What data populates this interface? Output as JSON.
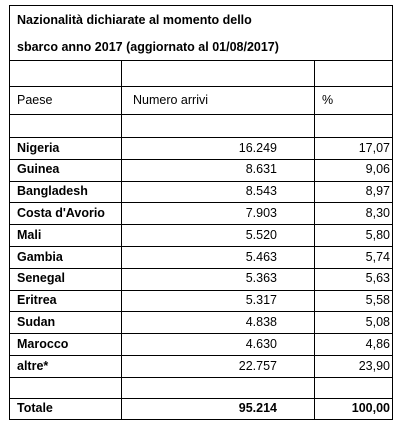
{
  "title_line1": "Nazionalità dichiarate al momento dello",
  "title_line2": "sbarco anno 2017 (aggiornato al 01/08/2017)",
  "headers": {
    "country": "Paese",
    "arrivals": "Numero arrivi",
    "percent": "%"
  },
  "rows": [
    {
      "country": "Nigeria",
      "arrivals": "16.249",
      "percent": "17,07"
    },
    {
      "country": "Guinea",
      "arrivals": "8.631",
      "percent": "9,06"
    },
    {
      "country": "Bangladesh",
      "arrivals": "8.543",
      "percent": "8,97"
    },
    {
      "country": "Costa d'Avorio",
      "arrivals": "7.903",
      "percent": "8,30"
    },
    {
      "country": "Mali",
      "arrivals": "5.520",
      "percent": "5,80"
    },
    {
      "country": "Gambia",
      "arrivals": "5.463",
      "percent": "5,74"
    },
    {
      "country": "Senegal",
      "arrivals": "5.363",
      "percent": "5,63"
    },
    {
      "country": "Eritrea",
      "arrivals": "5.317",
      "percent": "5,58"
    },
    {
      "country": "Sudan",
      "arrivals": "4.838",
      "percent": "5,08"
    },
    {
      "country": "Marocco",
      "arrivals": "4.630",
      "percent": "4,86"
    },
    {
      "country": "altre*",
      "arrivals": "22.757",
      "percent": "23,90"
    }
  ],
  "total": {
    "label": "Totale",
    "arrivals": "95.214",
    "percent": "100,00"
  }
}
